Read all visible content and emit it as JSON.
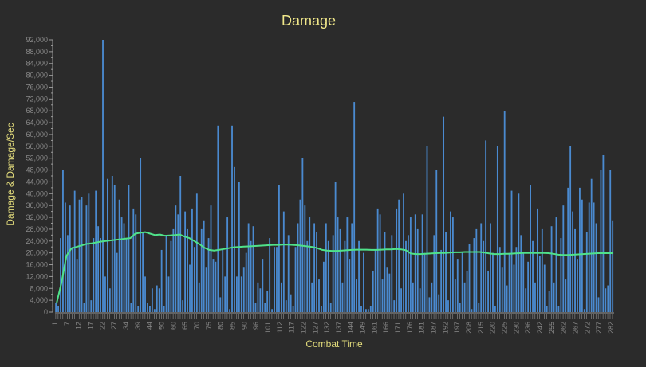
{
  "colors": {
    "background": "#2b2b2b",
    "bar": "#4a8ad0",
    "line": "#4fe28a",
    "title": "#f1e88a",
    "axis_label": "#e3dc7c",
    "tick": "#8a8a8a",
    "axis": "#9a9a9a"
  },
  "chart_data": {
    "type": "bar",
    "title": "Damage",
    "xlabel": "Combat Time",
    "ylabel": "Damage & Damage/Sec",
    "ylim": [
      0,
      92000
    ],
    "yticks": [
      0,
      4000,
      8000,
      12000,
      16000,
      20000,
      24000,
      28000,
      32000,
      36000,
      40000,
      44000,
      48000,
      52000,
      56000,
      60000,
      64000,
      68000,
      72000,
      76000,
      80000,
      84000,
      88000,
      92000
    ],
    "ytick_labels": [
      "0",
      "4,000",
      "8,000",
      "12,000",
      "16,000",
      "20,000",
      "24,000",
      "28,000",
      "32,000",
      "36,000",
      "40,000",
      "44,000",
      "48,000",
      "52,000",
      "56,000",
      "60,000",
      "64,000",
      "68,000",
      "72,000",
      "76,000",
      "80,000",
      "84,000",
      "88,000",
      "92,000"
    ],
    "xtick_labels": [
      "1",
      "7",
      "12",
      "17",
      "22",
      "27",
      "34",
      "39",
      "44",
      "50",
      "60",
      "65",
      "70",
      "75",
      "80",
      "85",
      "90",
      "96",
      "101",
      "112",
      "117",
      "122",
      "127",
      "132",
      "137",
      "144",
      "149",
      "161",
      "166",
      "171",
      "176",
      "181",
      "187",
      "192",
      "197",
      "208",
      "215",
      "220",
      "225",
      "230",
      "236",
      "242",
      "255",
      "262",
      "267",
      "272",
      "277",
      "282"
    ],
    "grid": false,
    "legend": "none",
    "series": [
      {
        "kind": "bar",
        "values": [
          3000,
          2000,
          25000,
          48000,
          37000,
          26000,
          36000,
          22000,
          41000,
          18000,
          38000,
          39000,
          3000,
          36000,
          40000,
          4000,
          25000,
          41000,
          29000,
          25000,
          92000,
          12000,
          45000,
          8000,
          46000,
          43000,
          20000,
          38000,
          32000,
          30000,
          25000,
          43000,
          3000,
          35000,
          33000,
          2000,
          52000,
          27000,
          12000,
          3000,
          2000,
          8000,
          1000,
          9000,
          8000,
          21000,
          2000,
          26000,
          12000,
          24000,
          28000,
          36000,
          33000,
          46000,
          4000,
          34000,
          28000,
          16000,
          35000,
          22000,
          40000,
          10000,
          28000,
          31000,
          15000,
          25000,
          36000,
          18000,
          17000,
          63000,
          5000,
          21000,
          12000,
          32000,
          1000,
          63000,
          49000,
          12000,
          44000,
          12000,
          15000,
          20000,
          30000,
          24000,
          29000,
          3000,
          10000,
          8000,
          18000,
          3000,
          7000,
          25000,
          1000,
          22000,
          22000,
          43000,
          10000,
          34000,
          4000,
          26000,
          6000,
          2000,
          22000,
          30000,
          38000,
          52000,
          36000,
          24000,
          32000,
          10000,
          30000,
          27000,
          11000,
          2000,
          17000,
          30000,
          24000,
          3000,
          26000,
          44000,
          32000,
          28000,
          10000,
          24000,
          32000,
          18000,
          30000,
          71000,
          11000,
          24000,
          2000,
          20000,
          1000,
          1000,
          2000,
          14000,
          21000,
          35000,
          33000,
          11000,
          27000,
          15000,
          13000,
          26000,
          4000,
          35000,
          38000,
          8000,
          40000,
          24000,
          26000,
          32000,
          10000,
          33000,
          28000,
          8000,
          33000,
          20000,
          56000,
          5000,
          10000,
          26000,
          48000,
          6000,
          21000,
          66000,
          27000,
          4000,
          34000,
          32000,
          11000,
          18000,
          3000,
          20000,
          10000,
          14000,
          23000,
          1000,
          25000,
          28000,
          3000,
          30000,
          24000,
          58000,
          14000,
          30000,
          20000,
          2000,
          56000,
          22000,
          15000,
          68000,
          9000,
          20000,
          41000,
          16000,
          22000,
          40000,
          26000,
          20000,
          8000,
          17000,
          43000,
          24000,
          10000,
          35000,
          19000,
          28000,
          16000,
          2000,
          7000,
          29000,
          10000,
          32000,
          2000,
          25000,
          36000,
          11000,
          42000,
          56000,
          34000,
          28000,
          18000,
          42000,
          38000,
          1000,
          27000,
          37000,
          45000,
          37000,
          30000,
          5000,
          48000,
          53000,
          8000,
          9000,
          48000,
          31000
        ]
      },
      {
        "kind": "line",
        "values": [
          3000,
          10000,
          19000,
          21500,
          22000,
          22500,
          23000,
          23200,
          23500,
          23800,
          24000,
          24200,
          24400,
          24600,
          24800,
          25000,
          26500,
          26800,
          27000,
          26500,
          26000,
          26200,
          25800,
          25900,
          26000,
          26200,
          25500,
          25000,
          24000,
          23000,
          21800,
          21000,
          20800,
          21000,
          21300,
          21600,
          21900,
          22000,
          22100,
          22200,
          22300,
          22400,
          22500,
          22600,
          22700,
          22700,
          22800,
          22800,
          22700,
          22600,
          22400,
          22200,
          22000,
          21600,
          21000,
          20800,
          20700,
          20700,
          20800,
          20900,
          21000,
          21100,
          21100,
          21100,
          21000,
          21000,
          21100,
          21200,
          21200,
          21300,
          21200,
          20900,
          19800,
          19600,
          19600,
          19700,
          19800,
          19900,
          20000,
          20000,
          20100,
          20200,
          20200,
          20300,
          20300,
          20300,
          20300,
          20100,
          19800,
          19600,
          19600,
          19700,
          19700,
          19800,
          19900,
          20000,
          20000,
          20000,
          20000,
          20000,
          19900,
          19700,
          19400,
          19300,
          19300,
          19400,
          19500,
          19600,
          19700,
          19800,
          19900,
          19900,
          19900,
          19900
        ]
      }
    ]
  }
}
